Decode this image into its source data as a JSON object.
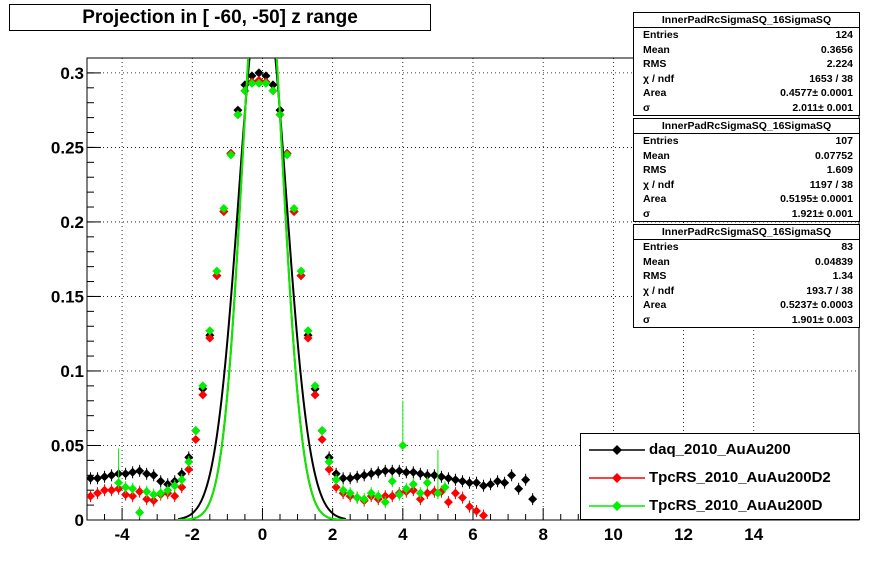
{
  "title": "Projection in [ -60, -50] z range",
  "colors": {
    "series0": "#000000",
    "series1": "#ff0000",
    "series2": "#00ee00"
  },
  "stats": [
    {
      "name": "InnerPadRcSigmaSQ_16SigmaSQ",
      "rows": [
        {
          "label": "Entries",
          "value": "124"
        },
        {
          "label": "Mean",
          "value": "0.3656"
        },
        {
          "label": "RMS",
          "value": "2.224"
        },
        {
          "label": "χ / ndf",
          "value": "1653 / 38"
        },
        {
          "label": "Area",
          "value": "0.4577± 0.0001"
        },
        {
          "label": "σ",
          "value": "2.011± 0.001"
        }
      ]
    },
    {
      "name": "InnerPadRcSigmaSQ_16SigmaSQ",
      "rows": [
        {
          "label": "Entries",
          "value": "107"
        },
        {
          "label": "Mean",
          "value": "0.07752"
        },
        {
          "label": "RMS",
          "value": "1.609"
        },
        {
          "label": "χ / ndf",
          "value": "1197 / 38"
        },
        {
          "label": "Area",
          "value": "0.5195± 0.0001"
        },
        {
          "label": "σ",
          "value": "1.921± 0.001"
        }
      ]
    },
    {
      "name": "InnerPadRcSigmaSQ_16SigmaSQ",
      "rows": [
        {
          "label": "Entries",
          "value": "83"
        },
        {
          "label": "Mean",
          "value": "0.04839"
        },
        {
          "label": "RMS",
          "value": "1.34"
        },
        {
          "label": "χ / ndf",
          "value": "193.7 / 38"
        },
        {
          "label": "Area",
          "value": "0.5237± 0.0003"
        },
        {
          "label": "σ",
          "value": "1.901± 0.003"
        }
      ]
    }
  ],
  "legend": [
    "daq_2010_AuAu200",
    "TpcRS_2010_AuAu200D2",
    "TpcRS_2010_AuAu200D"
  ],
  "chart_data": {
    "type": "scatter",
    "title": "Projection in [ -60, -50] z range",
    "xlabel": "",
    "ylabel": "",
    "xlim": [
      -5,
      17
    ],
    "ylim": [
      0,
      0.31
    ],
    "xticks": [
      "-4",
      "-2",
      "0",
      "2",
      "4",
      "6",
      "8",
      "10",
      "12",
      "14"
    ],
    "yticks": [
      "0",
      "0.05",
      "0.1",
      "0.15",
      "0.2",
      "0.25",
      "0.3"
    ],
    "grid": true,
    "legend_position": "bottom-right",
    "fits": [
      {
        "series": 0,
        "sigma": 0.5
      },
      {
        "series": 1,
        "sigma": 0.42
      },
      {
        "series": 2,
        "sigma": 0.42
      }
    ],
    "series": [
      {
        "name": "daq_2010_AuAu200",
        "x": [
          -4.9,
          -4.7,
          -4.5,
          -4.3,
          -4.1,
          -3.9,
          -3.7,
          -3.5,
          -3.3,
          -3.1,
          -2.9,
          -2.7,
          -2.5,
          -2.3,
          -2.1,
          -1.9,
          -1.7,
          -1.5,
          -1.3,
          -1.1,
          -0.9,
          -0.7,
          -0.5,
          -0.3,
          -0.1,
          0.1,
          0.3,
          0.5,
          0.7,
          0.9,
          1.1,
          1.3,
          1.5,
          1.7,
          1.9,
          2.1,
          2.3,
          2.5,
          2.7,
          2.9,
          3.1,
          3.3,
          3.5,
          3.7,
          3.9,
          4.1,
          4.3,
          4.5,
          4.7,
          4.9,
          5.1,
          5.3,
          5.5,
          5.7,
          5.9,
          6.1,
          6.3,
          6.5,
          6.7,
          6.9,
          7.1,
          7.3,
          7.5,
          7.7
        ],
        "y": [
          0.028,
          0.028,
          0.029,
          0.03,
          0.031,
          0.031,
          0.032,
          0.033,
          0.031,
          0.03,
          0.026,
          0.024,
          0.026,
          0.031,
          0.042,
          0.06,
          0.088,
          0.124,
          0.164,
          0.207,
          0.246,
          0.275,
          0.292,
          0.298,
          0.3,
          0.298,
          0.292,
          0.275,
          0.246,
          0.207,
          0.164,
          0.124,
          0.088,
          0.06,
          0.042,
          0.031,
          0.028,
          0.028,
          0.029,
          0.03,
          0.031,
          0.032,
          0.033,
          0.033,
          0.033,
          0.032,
          0.032,
          0.031,
          0.03,
          0.03,
          0.029,
          0.028,
          0.027,
          0.026,
          0.025,
          0.025,
          0.023,
          0.024,
          0.026,
          0.025,
          0.03,
          0.021,
          0.027,
          0.014
        ]
      },
      {
        "name": "TpcRS_2010_AuAu200D2",
        "x": [
          -4.9,
          -4.7,
          -4.5,
          -4.3,
          -4.1,
          -3.9,
          -3.7,
          -3.5,
          -3.3,
          -3.1,
          -2.9,
          -2.7,
          -2.5,
          -2.3,
          -2.1,
          -1.9,
          -1.7,
          -1.5,
          -1.3,
          -1.1,
          -0.9,
          -0.7,
          -0.5,
          -0.3,
          -0.1,
          0.1,
          0.3,
          0.5,
          0.7,
          0.9,
          1.1,
          1.3,
          1.5,
          1.7,
          1.9,
          2.1,
          2.3,
          2.5,
          2.7,
          2.9,
          3.1,
          3.3,
          3.5,
          3.7,
          3.9,
          4.1,
          4.3,
          4.5,
          4.7,
          4.9,
          5.1,
          5.3,
          5.5,
          5.7,
          5.9,
          6.1,
          6.3
        ],
        "y": [
          0.016,
          0.018,
          0.02,
          0.02,
          0.021,
          0.017,
          0.016,
          0.019,
          0.014,
          0.013,
          0.017,
          0.018,
          0.016,
          0.022,
          0.034,
          0.054,
          0.084,
          0.122,
          0.164,
          0.207,
          0.246,
          0.272,
          0.288,
          0.294,
          0.295,
          0.294,
          0.288,
          0.272,
          0.246,
          0.207,
          0.164,
          0.122,
          0.084,
          0.054,
          0.034,
          0.022,
          0.018,
          0.016,
          0.015,
          0.013,
          0.016,
          0.014,
          0.016,
          0.016,
          0.018,
          0.019,
          0.02,
          0.014,
          0.018,
          0.019,
          0.019,
          0.012,
          0.018,
          0.015,
          0.009,
          0.006,
          0.003
        ]
      },
      {
        "name": "TpcRS_2010_AuAu200D",
        "x": [
          -4.1,
          -3.9,
          -3.7,
          -3.5,
          -3.3,
          -3.1,
          -2.9,
          -2.7,
          -2.5,
          -2.3,
          -2.1,
          -1.9,
          -1.7,
          -1.5,
          -1.3,
          -1.1,
          -0.9,
          -0.7,
          -0.5,
          -0.3,
          -0.1,
          0.1,
          0.3,
          0.5,
          0.7,
          0.9,
          1.1,
          1.3,
          1.5,
          1.7,
          1.9,
          2.1,
          2.3,
          2.5,
          2.7,
          2.9,
          3.1,
          3.3,
          3.5,
          3.7,
          3.9,
          4.0,
          4.1,
          4.3,
          4.5,
          4.7,
          5.0,
          5.2
        ],
        "y": [
          0.025,
          0.022,
          0.021,
          0.005,
          0.019,
          0.017,
          0.018,
          0.02,
          0.023,
          0.027,
          0.039,
          0.06,
          0.09,
          0.127,
          0.167,
          0.209,
          0.245,
          0.272,
          0.288,
          0.293,
          0.293,
          0.293,
          0.288,
          0.272,
          0.245,
          0.209,
          0.167,
          0.127,
          0.09,
          0.06,
          0.039,
          0.027,
          0.02,
          0.018,
          0.015,
          0.014,
          0.018,
          0.016,
          0.012,
          0.026,
          0.017,
          0.05,
          0.021,
          0.024,
          0.018,
          0.025,
          0.018,
          0.022
        ]
      }
    ]
  }
}
